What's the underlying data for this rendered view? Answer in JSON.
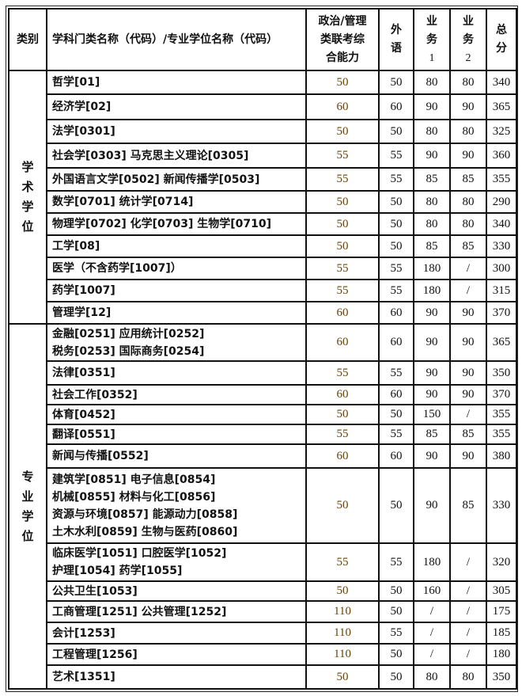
{
  "header": {
    "category": "类别",
    "name": "学科门类名称（代码）/专业学位名称（代码）",
    "politics": [
      "政治/管理",
      "类联考综",
      "合能力"
    ],
    "foreign": [
      "外",
      "语"
    ],
    "subject1": [
      "业",
      "务",
      "1"
    ],
    "subject2": [
      "业",
      "务",
      "2"
    ],
    "total": [
      "总",
      "分"
    ]
  },
  "groups": [
    {
      "category": [
        "学",
        "术",
        "学",
        "位"
      ],
      "rows": [
        {
          "name": [
            "哲学[01]"
          ],
          "pol": "50",
          "fl": "50",
          "s1": "80",
          "s2": "80",
          "total": "340"
        },
        {
          "name": [
            "经济学[02]"
          ],
          "pol": "60",
          "fl": "60",
          "s1": "90",
          "s2": "90",
          "total": "365"
        },
        {
          "name": [
            "法学[0301]"
          ],
          "pol": "50",
          "fl": "50",
          "s1": "80",
          "s2": "80",
          "total": "325"
        },
        {
          "name": [
            "社会学[0303] 马克思主义理论[0305]"
          ],
          "pol": "55",
          "fl": "55",
          "s1": "90",
          "s2": "90",
          "total": "360"
        },
        {
          "name": [
            "外国语言文学[0502] 新闻传播学[0503]"
          ],
          "pol": "55",
          "fl": "55",
          "s1": "85",
          "s2": "85",
          "total": "355"
        },
        {
          "name": [
            "数学[0701] 统计学[0714]"
          ],
          "pol": "50",
          "fl": "50",
          "s1": "80",
          "s2": "80",
          "total": "290"
        },
        {
          "name": [
            "物理学[0702] 化学[0703] 生物学[0710]"
          ],
          "pol": "50",
          "fl": "50",
          "s1": "80",
          "s2": "80",
          "total": "340"
        },
        {
          "name": [
            "工学[08]"
          ],
          "pol": "50",
          "fl": "50",
          "s1": "85",
          "s2": "85",
          "total": "330"
        },
        {
          "name": [
            "医学（不含药学[1007]）"
          ],
          "pol": "55",
          "fl": "55",
          "s1": "180",
          "s2": "/",
          "total": "300"
        },
        {
          "name": [
            "药学[1007]"
          ],
          "pol": "55",
          "fl": "55",
          "s1": "180",
          "s2": "/",
          "total": "315"
        },
        {
          "name": [
            "管理学[12]"
          ],
          "pol": "60",
          "fl": "60",
          "s1": "90",
          "s2": "90",
          "total": "370"
        }
      ]
    },
    {
      "category": [
        "专",
        "业",
        "学",
        "位"
      ],
      "rows": [
        {
          "name": [
            "金融[0251] 应用统计[0252]",
            "税务[0253] 国际商务[0254]"
          ],
          "pol": "60",
          "fl": "60",
          "s1": "90",
          "s2": "90",
          "total": "365"
        },
        {
          "name": [
            "法律[0351]"
          ],
          "pol": "55",
          "fl": "55",
          "s1": "90",
          "s2": "90",
          "total": "350"
        },
        {
          "name": [
            "社会工作[0352]"
          ],
          "pol": "60",
          "fl": "60",
          "s1": "90",
          "s2": "90",
          "total": "370"
        },
        {
          "name": [
            "体育[0452]"
          ],
          "pol": "50",
          "fl": "50",
          "s1": "150",
          "s2": "/",
          "total": "355"
        },
        {
          "name": [
            "翻译[0551]"
          ],
          "pol": "55",
          "fl": "55",
          "s1": "85",
          "s2": "85",
          "total": "355"
        },
        {
          "name": [
            "新闻与传播[0552]"
          ],
          "pol": "60",
          "fl": "60",
          "s1": "90",
          "s2": "90",
          "total": "380"
        },
        {
          "name": [
            "建筑学[0851] 电子信息[0854]",
            "机械[0855] 材料与化工[0856]",
            "资源与环境[0857] 能源动力[0858]",
            "土木水利[0859] 生物与医药[0860]"
          ],
          "pol": "50",
          "fl": "50",
          "s1": "90",
          "s2": "85",
          "total": "330"
        },
        {
          "name": [
            "临床医学[1051] 口腔医学[1052]",
            "护理[1054] 药学[1055]"
          ],
          "pol": "55",
          "fl": "55",
          "s1": "180",
          "s2": "/",
          "total": "320"
        },
        {
          "name": [
            "公共卫生[1053]"
          ],
          "pol": "50",
          "fl": "50",
          "s1": "160",
          "s2": "/",
          "total": "305"
        },
        {
          "name": [
            "工商管理[1251] 公共管理[1252]"
          ],
          "pol": "110",
          "fl": "50",
          "s1": "/",
          "s2": "/",
          "total": "175"
        },
        {
          "name": [
            "会计[1253]"
          ],
          "pol": "110",
          "fl": "55",
          "s1": "/",
          "s2": "/",
          "total": "185"
        },
        {
          "name": [
            "工程管理[1256]"
          ],
          "pol": "110",
          "fl": "50",
          "s1": "/",
          "s2": "/",
          "total": "180"
        },
        {
          "name": [
            "艺术[1351]"
          ],
          "pol": "50",
          "fl": "50",
          "s1": "80",
          "s2": "80",
          "total": "350"
        }
      ]
    }
  ]
}
